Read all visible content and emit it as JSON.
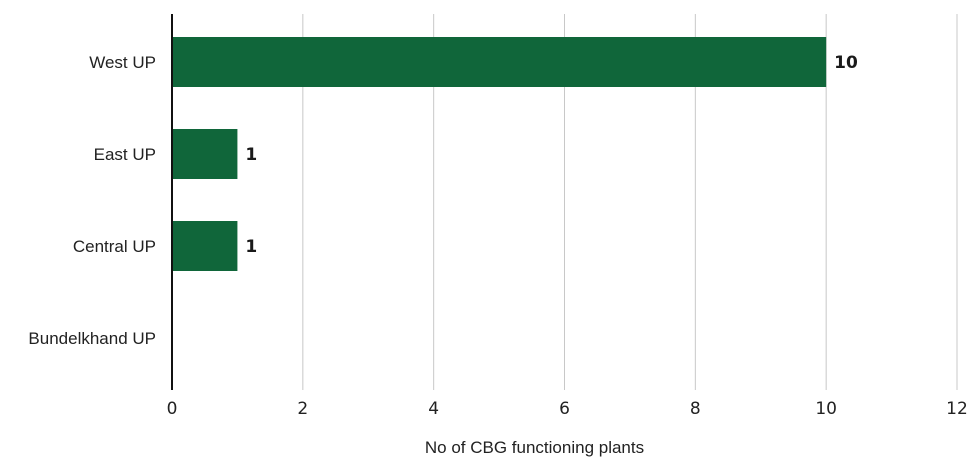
{
  "chart_data": {
    "type": "bar",
    "orientation": "horizontal",
    "title": "",
    "categories": [
      "West UP",
      "East UP",
      "Central UP",
      "Bundelkhand UP"
    ],
    "values": [
      10,
      1,
      1,
      0
    ],
    "value_labels": [
      "10",
      "1",
      "1",
      ""
    ],
    "xlabel": "No of CBG functioning plants",
    "ylabel": "",
    "xlim": [
      0,
      12
    ],
    "xticks": [
      0,
      2,
      4,
      6,
      8,
      10,
      12
    ],
    "grid": "vertical",
    "legend": "none",
    "colors": {
      "bar": "#10663a",
      "grid": "#c8c8c8",
      "axis": "#111111"
    }
  }
}
